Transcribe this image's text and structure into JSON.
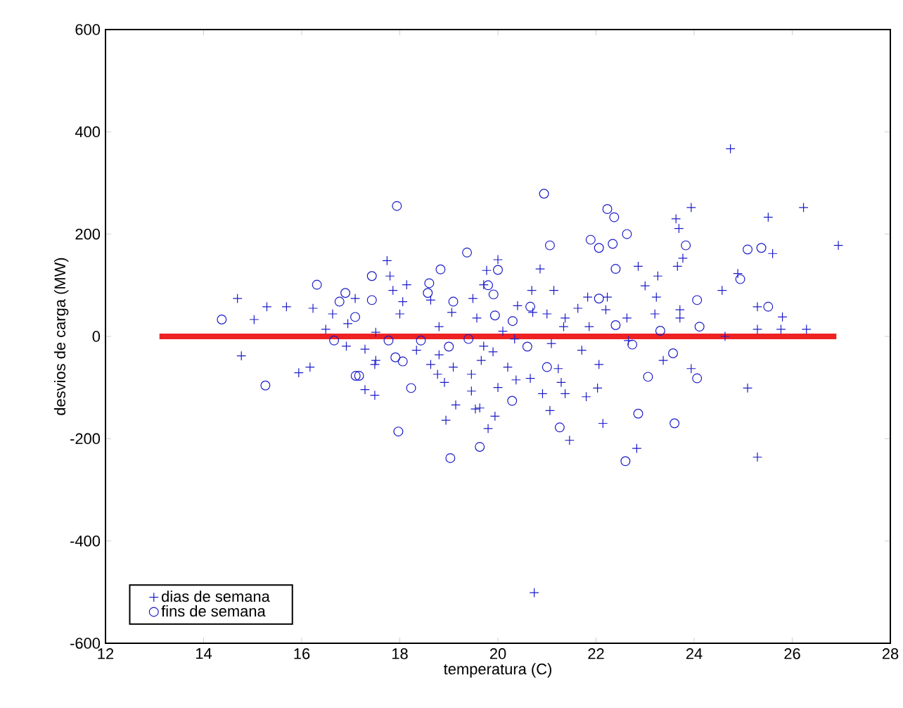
{
  "chart_data": {
    "type": "scatter",
    "xlabel": "temperatura (C)",
    "ylabel": "desvios de carga (MW)",
    "xlim": [
      12,
      28
    ],
    "ylim": [
      -600,
      600
    ],
    "xticks": [
      12,
      14,
      16,
      18,
      20,
      22,
      24,
      26,
      28
    ],
    "yticks": [
      -600,
      -400,
      -200,
      0,
      200,
      400,
      600
    ],
    "legend": "bottom left",
    "series": [
      {
        "name": "dias de semana",
        "marker": "cross",
        "color": "#1c1cc8",
        "x": [
          14.69,
          15.29,
          15.03,
          15.69,
          16.23,
          14.77,
          15.94,
          16.17,
          16.49,
          16.63,
          16.94,
          17.09,
          16.91,
          17.29,
          17.51,
          17.51,
          17.74,
          17.8,
          17.86,
          18.0,
          18.06,
          18.14,
          18.63,
          18.8,
          19.06,
          19.49,
          19.77,
          19.71,
          19.57,
          18.34,
          18.63,
          18.77,
          19.09,
          18.8,
          19.46,
          19.66,
          19.71,
          17.29,
          17.49,
          17.49,
          18.94,
          19.14,
          19.54,
          19.46,
          18.91,
          24.74,
          23.94,
          23.63,
          23.69,
          23.77,
          23.66,
          25.51,
          26.23,
          26.94,
          25.6,
          20.86,
          20.69,
          21.14,
          22.86,
          23.26,
          23.0,
          23.23,
          24.57,
          24.89,
          21.83,
          22.23,
          22.2,
          21.63,
          21.37,
          21.0,
          20.71,
          23.2,
          23.71,
          23.71,
          25.29,
          25.8,
          25.29,
          26.29,
          25.77,
          24.63,
          22.63,
          21.86,
          21.34,
          21.71,
          23.37,
          23.94,
          22.06,
          21.23,
          25.09,
          22.66,
          20.34,
          21.09,
          20.74,
          25.29,
          22.83,
          22.14,
          21.46,
          19.94,
          21.06,
          21.8,
          22.03,
          20.91,
          21.37,
          21.29,
          20.37,
          20.66,
          19.63,
          20.0,
          20.2,
          19.9,
          20.1,
          20.4,
          20.0,
          19.8
        ],
        "values": [
          74,
          58,
          33,
          58,
          55,
          -38,
          -71,
          -60,
          14,
          44,
          25,
          74,
          -19,
          -25,
          8,
          -47,
          148,
          118,
          90,
          44,
          68,
          101,
          71,
          19,
          47,
          74,
          129,
          101,
          36,
          -27,
          -55,
          -74,
          -60,
          -36,
          -74,
          -47,
          -19,
          -104,
          -55,
          -115,
          -164,
          -134,
          -142,
          -107,
          -90,
          367,
          252,
          230,
          211,
          153,
          137,
          233,
          252,
          178,
          162,
          132,
          90,
          90,
          137,
          118,
          99,
          77,
          90,
          123,
          77,
          77,
          52,
          55,
          36,
          44,
          47,
          44,
          52,
          36,
          58,
          38,
          14,
          14,
          14,
          0,
          36,
          19,
          19,
          -27,
          -47,
          -63,
          -55,
          -63,
          -101,
          -8,
          -5,
          -14,
          -501,
          -236,
          -219,
          -170,
          -203,
          -156,
          -145,
          -118,
          -101,
          -112,
          -112,
          -90,
          -85,
          -82,
          -140,
          -100,
          -60,
          -30,
          10,
          60,
          150,
          -180
        ]
      },
      {
        "name": "fins de semana",
        "marker": "circle",
        "color": "#1c1cc8",
        "x": [
          14.37,
          15.26,
          17.1,
          17.94,
          16.31,
          17.43,
          16.89,
          16.77,
          17.43,
          17.09,
          16.66,
          17.77,
          17.17,
          17.91,
          18.06,
          18.23,
          18.43,
          18.6,
          18.83,
          19.37,
          18.57,
          19.09,
          19.4,
          17.97,
          19.03,
          19.63,
          20.94,
          21.06,
          22.23,
          22.37,
          22.63,
          21.89,
          22.06,
          22.34,
          22.4,
          23.83,
          25.09,
          25.37,
          24.94,
          24.06,
          25.51,
          22.4,
          23.31,
          24.11,
          22.74,
          23.57,
          23.06,
          24.06,
          19.91,
          19.94,
          22.06,
          20.66,
          20.29,
          21.26,
          22.86,
          23.6,
          22.6,
          20.0,
          19.8,
          20.3,
          20.6,
          21.0,
          19.0
        ],
        "values": [
          33,
          -96,
          -77,
          255,
          101,
          118,
          85,
          68,
          71,
          38,
          -8,
          -8,
          -77,
          -41,
          -49,
          -101,
          -8,
          104,
          131,
          164,
          85,
          68,
          -5,
          -186,
          -238,
          -216,
          279,
          178,
          249,
          233,
          200,
          189,
          173,
          181,
          132,
          178,
          170,
          173,
          112,
          71,
          58,
          22,
          11,
          19,
          -16,
          -33,
          -79,
          -82,
          82,
          41,
          74,
          58,
          -126,
          -178,
          -151,
          -170,
          -244,
          130,
          100,
          30,
          -20,
          -60,
          -20
        ]
      },
      {
        "type": "line",
        "marker": "none",
        "color": "#ee2222",
        "x": [
          13.1,
          26.9
        ],
        "values": [
          0,
          0
        ]
      }
    ]
  }
}
